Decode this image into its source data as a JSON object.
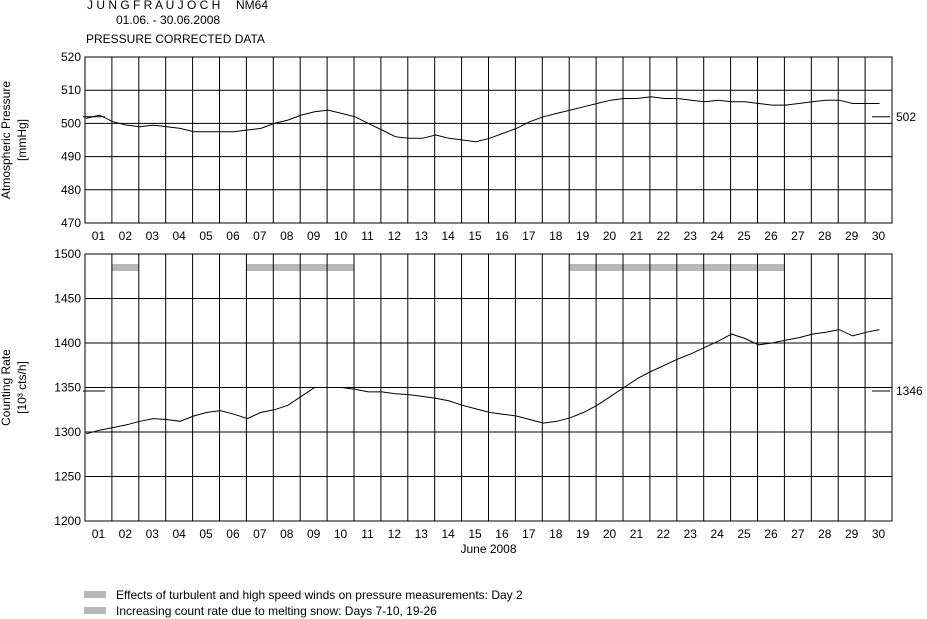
{
  "header": {
    "station_title": "J U N G F R A U J O C H",
    "detector": "NM64",
    "date_range": "01.06. - 30.06.2008",
    "subtitle": "PRESSURE CORRECTED DATA"
  },
  "colors": {
    "line": "#000000",
    "grid": "#000000",
    "highlight": "#b8b8b8",
    "background": "#ffffff"
  },
  "x_axis": {
    "label": "June 2008",
    "tick_labels": [
      "01",
      "02",
      "03",
      "04",
      "05",
      "06",
      "07",
      "08",
      "09",
      "10",
      "11",
      "12",
      "13",
      "14",
      "15",
      "16",
      "17",
      "18",
      "19",
      "20",
      "21",
      "22",
      "23",
      "24",
      "25",
      "26",
      "27",
      "28",
      "29",
      "30"
    ]
  },
  "legend": {
    "placement": "bottom-left",
    "items": [
      "Effects of turbulent and high speed winds on pressure measurements: Day 2",
      "Increasing count rate due to melting snow: Days 7-10, 19-26"
    ]
  },
  "chart_data": [
    {
      "type": "line",
      "name": "pressure",
      "ylabel": "Atmospheric Pressure",
      "yunit": "[mmHg]",
      "ylim": [
        470,
        520
      ],
      "yticks": [
        "470",
        "480",
        "490",
        "500",
        "510",
        "520"
      ],
      "grid": true,
      "x": [
        1,
        1.5,
        2,
        2.5,
        3,
        3.5,
        4,
        4.5,
        5,
        5.5,
        6,
        6.5,
        7,
        7.5,
        8,
        8.5,
        9,
        9.5,
        10,
        10.5,
        11,
        11.5,
        12,
        12.5,
        13,
        13.5,
        14,
        14.5,
        15,
        15.5,
        16,
        16.5,
        17,
        17.5,
        18,
        18.5,
        19,
        19.5,
        20,
        20.5,
        21,
        21.5,
        22,
        22.5,
        23,
        23.5,
        24,
        24.5,
        25,
        25.5,
        26,
        26.5,
        27,
        27.5,
        28,
        28.5,
        29,
        29.5,
        30,
        30.5
      ],
      "values": [
        501.5,
        502.5,
        500.5,
        499.5,
        499,
        499.5,
        499,
        498.5,
        497.5,
        497.5,
        497.5,
        497.5,
        498,
        498.5,
        500,
        501,
        502.5,
        503.5,
        504,
        503,
        502,
        500,
        498,
        496,
        495.5,
        495.5,
        496.5,
        495.5,
        495,
        494.5,
        495.5,
        497,
        498.5,
        500.5,
        502,
        503,
        504,
        505,
        506,
        507,
        507.5,
        507.5,
        508,
        507.5,
        507.5,
        507,
        506.5,
        507,
        506.5,
        506.5,
        506,
        505.5,
        505.5,
        506,
        506.5,
        507,
        507,
        506,
        506,
        506
      ],
      "reference_value": "502",
      "reference_level": 502
    },
    {
      "type": "line",
      "name": "counting rate",
      "ylabel": "Counting Rate",
      "yunit": "[10³ cts/h]",
      "ylim": [
        1200,
        1500
      ],
      "yticks": [
        "1200",
        "1250",
        "1300",
        "1350",
        "1400",
        "1450",
        "1500"
      ],
      "grid": true,
      "x": [
        1,
        1.5,
        2,
        2.5,
        3,
        3.5,
        4,
        4.5,
        5,
        5.5,
        6,
        6.5,
        7,
        7.5,
        8,
        8.5,
        9,
        9.5,
        10,
        10.5,
        11,
        11.5,
        12,
        12.5,
        13,
        13.5,
        14,
        14.5,
        15,
        15.5,
        16,
        16.5,
        17,
        17.5,
        18,
        18.5,
        19,
        19.5,
        20,
        20.5,
        21,
        21.5,
        22,
        22.5,
        23,
        23.5,
        24,
        24.5,
        25,
        25.5,
        26,
        26.5,
        27,
        27.5,
        28,
        28.5,
        29,
        29.5,
        30,
        30.5
      ],
      "values": [
        1298,
        1302,
        1305,
        1308,
        1312,
        1315,
        1314,
        1312,
        1318,
        1322,
        1324,
        1320,
        1315,
        1322,
        1325,
        1330,
        1340,
        1350,
        1350,
        1350,
        1348,
        1345,
        1345,
        1343,
        1342,
        1340,
        1338,
        1335,
        1330,
        1326,
        1322,
        1320,
        1318,
        1314,
        1310,
        1312,
        1316,
        1322,
        1330,
        1340,
        1350,
        1360,
        1368,
        1375,
        1382,
        1388,
        1395,
        1402,
        1410,
        1405,
        1398,
        1400,
        1403,
        1406,
        1410,
        1412,
        1415,
        1408,
        1412,
        1415
      ],
      "reference_value": "1346",
      "reference_level": 1346,
      "highlight_bands": [
        {
          "note": "Day 2",
          "from": 1.5,
          "to": 2.5
        },
        {
          "note": "Days 7-10",
          "from": 6.5,
          "to": 10.5
        },
        {
          "note": "Days 19-26",
          "from": 18.5,
          "to": 26.5
        }
      ]
    }
  ]
}
